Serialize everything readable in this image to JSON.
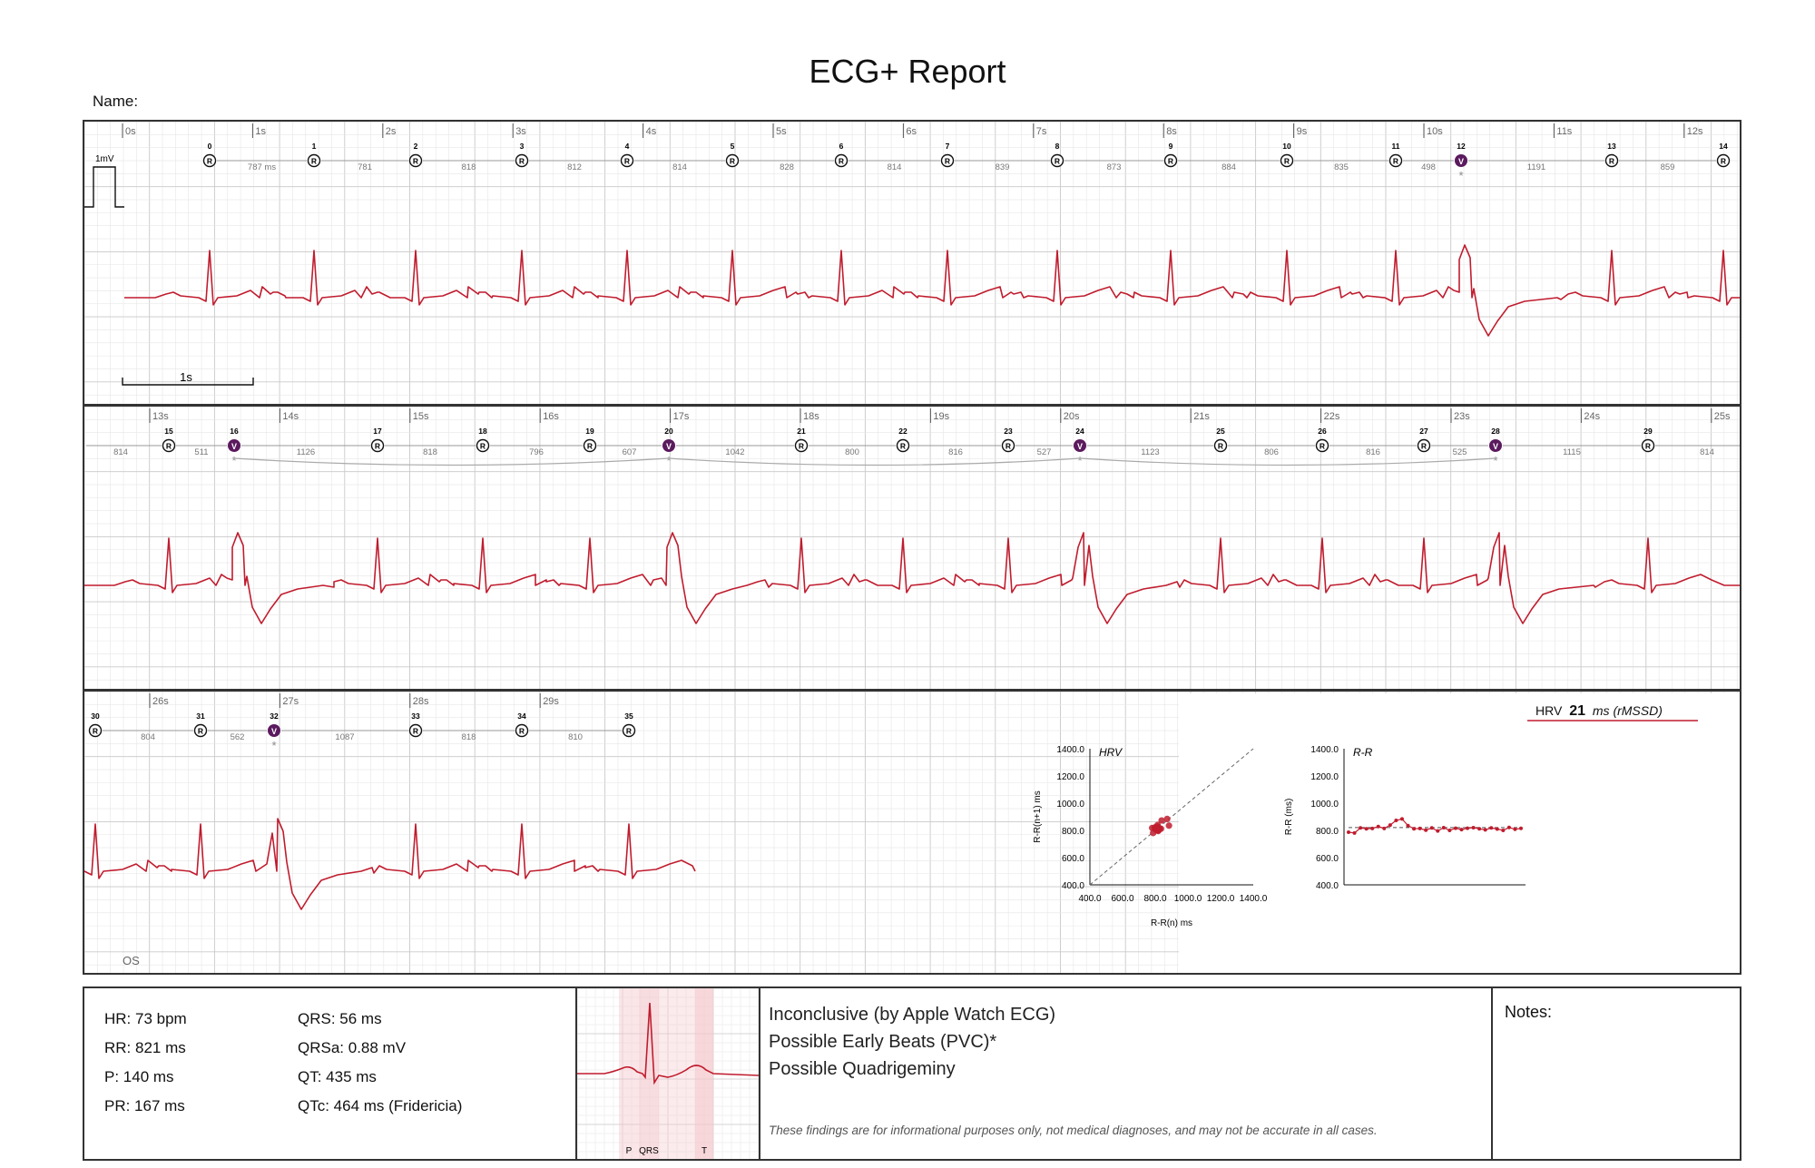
{
  "report": {
    "title": "ECG+ Report",
    "name_label": "Name:",
    "os_label": "OS"
  },
  "colors": {
    "trace": "#c01c2e",
    "grid_minor": "#e6e6e6",
    "grid_major": "#c9c9c9",
    "pvc_marker": "#5b1a5e",
    "frame": "#333333"
  },
  "strips": [
    {
      "seconds": [
        "0s",
        "1s",
        "2s",
        "3s",
        "4s",
        "5s",
        "6s",
        "7s",
        "8s",
        "9s",
        "10s",
        "11s",
        "12s"
      ],
      "calibration_label": "1mV",
      "scale_label": "1s",
      "beats": [
        {
          "n": "0",
          "type": "R"
        },
        {
          "n": "1",
          "type": "R"
        },
        {
          "n": "2",
          "type": "R"
        },
        {
          "n": "3",
          "type": "R"
        },
        {
          "n": "4",
          "type": "R"
        },
        {
          "n": "5",
          "type": "R"
        },
        {
          "n": "6",
          "type": "R"
        },
        {
          "n": "7",
          "type": "R"
        },
        {
          "n": "8",
          "type": "R"
        },
        {
          "n": "9",
          "type": "R"
        },
        {
          "n": "10",
          "type": "R"
        },
        {
          "n": "11",
          "type": "R"
        },
        {
          "n": "12",
          "type": "V"
        },
        {
          "n": "13",
          "type": "R"
        },
        {
          "n": "14",
          "type": "R"
        }
      ],
      "intervals": [
        "787 ms",
        "781",
        "818",
        "812",
        "814",
        "828",
        "814",
        "839",
        "873",
        "884",
        "835",
        "498",
        "1191",
        "859"
      ]
    },
    {
      "seconds": [
        "13s",
        "14s",
        "15s",
        "16s",
        "17s",
        "18s",
        "19s",
        "20s",
        "21s",
        "22s",
        "23s",
        "24s",
        "25s"
      ],
      "lead_interval": "814",
      "beats": [
        {
          "n": "15",
          "type": "R"
        },
        {
          "n": "16",
          "type": "V"
        },
        {
          "n": "17",
          "type": "R"
        },
        {
          "n": "18",
          "type": "R"
        },
        {
          "n": "19",
          "type": "R"
        },
        {
          "n": "20",
          "type": "V"
        },
        {
          "n": "21",
          "type": "R"
        },
        {
          "n": "22",
          "type": "R"
        },
        {
          "n": "23",
          "type": "R"
        },
        {
          "n": "24",
          "type": "V"
        },
        {
          "n": "25",
          "type": "R"
        },
        {
          "n": "26",
          "type": "R"
        },
        {
          "n": "27",
          "type": "R"
        },
        {
          "n": "28",
          "type": "V"
        },
        {
          "n": "29",
          "type": "R"
        }
      ],
      "intervals": [
        "511",
        "1126",
        "818",
        "796",
        "607",
        "1042",
        "800",
        "816",
        "527",
        "1123",
        "806",
        "816",
        "525",
        "1115"
      ],
      "trail_interval": "814"
    },
    {
      "seconds": [
        "26s",
        "27s",
        "28s",
        "29s"
      ],
      "beats": [
        {
          "n": "30",
          "type": "R"
        },
        {
          "n": "31",
          "type": "R"
        },
        {
          "n": "32",
          "type": "V"
        },
        {
          "n": "33",
          "type": "R"
        },
        {
          "n": "34",
          "type": "R"
        },
        {
          "n": "35",
          "type": "R"
        }
      ],
      "intervals": [
        "804",
        "562",
        "1087",
        "818",
        "810"
      ]
    }
  ],
  "hrv": {
    "label": "HRV",
    "value": "21",
    "unit": "ms (rMSSD)",
    "poincare": {
      "title": "HRV",
      "xlabel": "R-R(n) ms",
      "ylabel": "R-R(n+1) ms",
      "xticks": [
        "400.0",
        "600.0",
        "800.0",
        "1000.0",
        "1200.0",
        "1400.0"
      ],
      "yticks": [
        "400.0",
        "600.0",
        "800.0",
        "1000.0",
        "1200.0",
        "1400.0"
      ]
    },
    "rr": {
      "title": "R-R",
      "ylabel": "R-R (ms)",
      "yticks": [
        "400.0",
        "600.0",
        "800.0",
        "1000.0",
        "1200.0",
        "1400.0"
      ]
    }
  },
  "chart_data": [
    {
      "type": "scatter",
      "title": "HRV",
      "xlabel": "R-R(n) ms",
      "ylabel": "R-R(n+1) ms",
      "xlim": [
        400,
        1400
      ],
      "ylim": [
        400,
        1400
      ],
      "identity_line": true,
      "x": [
        787,
        781,
        818,
        812,
        814,
        828,
        814,
        839,
        873,
        884,
        835,
        812,
        814,
        802,
        818,
        796,
        820,
        800,
        816,
        806,
        816,
        820,
        812,
        804,
        818,
        810,
        800,
        822
      ],
      "y": [
        781,
        818,
        812,
        814,
        828,
        814,
        839,
        873,
        884,
        835,
        812,
        814,
        802,
        818,
        796,
        820,
        800,
        816,
        806,
        816,
        820,
        812,
        804,
        818,
        810,
        800,
        822,
        808
      ]
    },
    {
      "type": "line",
      "title": "R-R",
      "ylabel": "R-R (ms)",
      "ylim": [
        400,
        1400
      ],
      "mean": 821,
      "values": [
        787,
        781,
        818,
        812,
        814,
        828,
        814,
        839,
        873,
        884,
        835,
        812,
        814,
        802,
        818,
        796,
        820,
        800,
        816,
        806,
        816,
        820,
        812,
        804,
        818,
        810,
        800,
        822,
        808,
        815
      ]
    }
  ],
  "measurements": {
    "hr": "HR: 73 bpm",
    "rr": "RR: 821 ms",
    "p": "P: 140 ms",
    "pr": "PR: 167 ms",
    "qrs": "QRS: 56 ms",
    "qrsa": "QRSa: 0.88 mV",
    "qt": "QT: 435 ms",
    "qtc": "QTc: 464 ms (Fridericia)"
  },
  "average_beat": {
    "labels": [
      "P",
      "QRS",
      "T"
    ]
  },
  "diagnosis": {
    "lines": [
      "Inconclusive (by Apple Watch ECG)",
      "Possible Early Beats (PVC)*",
      "Possible Quadrigeminy"
    ],
    "disclaimer": "These findings are for informational purposes only, not medical diagnoses, and may not be accurate in all cases."
  },
  "notes_label": "Notes:"
}
